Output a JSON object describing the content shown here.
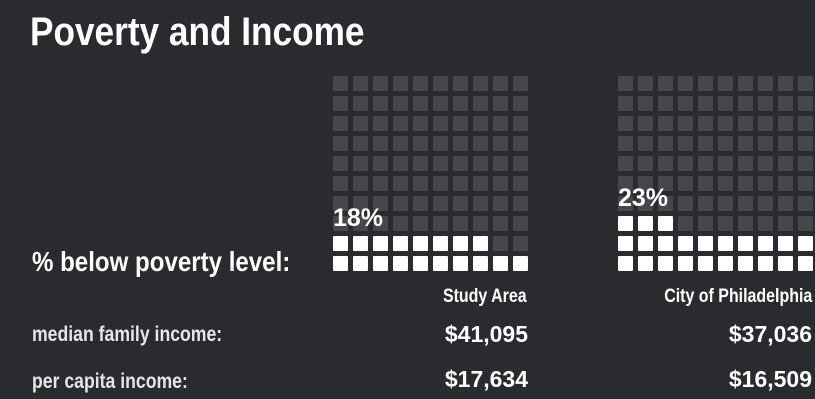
{
  "title": "Poverty and Income",
  "labels": {
    "poverty": "% below poverty level:",
    "median_family_income": "median family income:",
    "per_capita_income": "per capita income:"
  },
  "colors": {
    "background": "#2a2b2e",
    "filled": "#ffffff",
    "empty": "#46474b"
  },
  "chart_data": {
    "type": "waffle",
    "grid_size": 100,
    "series": [
      {
        "name": "Study Area",
        "poverty_pct": 18,
        "poverty_label": "18%",
        "median_family_income": "$41,095",
        "per_capita_income": "$17,634"
      },
      {
        "name": "City of Philadelphia",
        "poverty_pct": 23,
        "poverty_label": "23%",
        "median_family_income": "$37,036",
        "per_capita_income": "$16,509"
      }
    ]
  }
}
